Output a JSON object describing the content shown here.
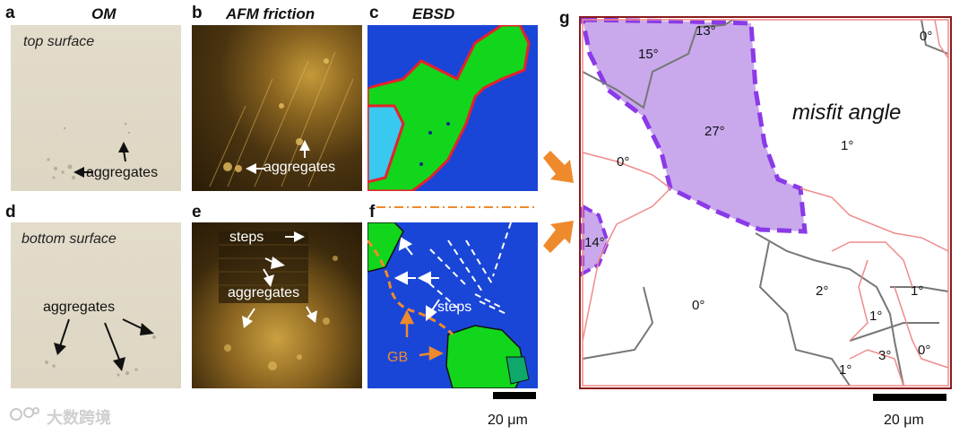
{
  "panels": {
    "a": {
      "letter": "a",
      "title": "OM",
      "surface_label": "top surface",
      "annotation": "aggregates"
    },
    "b": {
      "letter": "b",
      "title": "AFM friction",
      "annotation": "aggregates"
    },
    "c": {
      "letter": "c",
      "title": "EBSD"
    },
    "d": {
      "letter": "d",
      "surface_label": "bottom surface",
      "annotation": "aggregates"
    },
    "e": {
      "letter": "e",
      "annotation_steps": "steps",
      "annotation_aggregates": "aggregates"
    },
    "f": {
      "letter": "f",
      "annotation_steps": "steps",
      "annotation_gb": "GB"
    },
    "g": {
      "letter": "g",
      "title": "misfit angle",
      "angles": [
        "13°",
        "15°",
        "27°",
        "0°",
        "0°",
        "1°",
        "14°",
        "0°",
        "2°",
        "1°",
        "1°",
        "3°",
        "0°",
        "1°"
      ]
    }
  },
  "scale_bars": {
    "left": "20 μm",
    "right": "20 μm"
  },
  "watermark": "大数跨境",
  "colors": {
    "ebsd_blue": "#1a46d8",
    "ebsd_green": "#12d61c",
    "ebsd_cyan": "#38c8f0",
    "boundary_red": "#e8202a",
    "arrow_orange": "#ef8a2c",
    "highlight_purple": "#c9a8ec",
    "dash_purple": "#8a3ae8",
    "map_frame": "#8a1a1a"
  }
}
